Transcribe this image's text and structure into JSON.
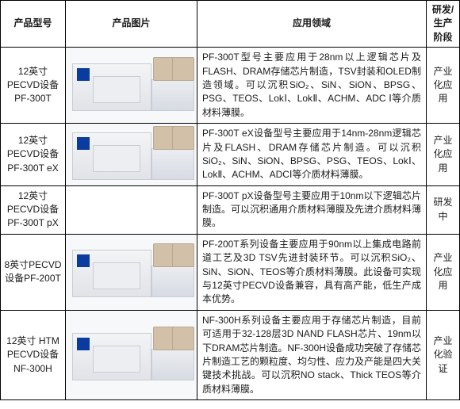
{
  "headers": {
    "model": "产品型号",
    "image": "产品图片",
    "app": "应用领域",
    "stage": "研发/生产阶段"
  },
  "rows": [
    {
      "model": "12英寸PECVD设备PF-300T",
      "app": "PF-300T型号主要应用于28nm以上逻辑芯片及FLASH、DRAM存储芯片制造，TSV封装和OLED制造领域。可以沉积SiO₂、SiN、SiON、BPSG、PSG、TEOS、LokⅠ、LokⅡ、ACHM、ADC Ⅰ等介质材料薄膜。",
      "stage": "产业化应用",
      "has_image": true
    },
    {
      "model": "12英寸PECVD设备PF-300T eX",
      "app": "PF-300T eX设备型号主要应用于14nm-28nm逻辑芯片及FLASH、DRAM存储芯片制造。可以沉积SiO₂、SiN、SiON、BPSG、PSG、TEOS、LokⅠ、LokⅡ、ACHM、ADCⅠ等介质材料薄膜。",
      "stage": "产业化应用",
      "has_image": true
    },
    {
      "model": "12英寸PECVD设备PF-300T pX",
      "app": "PF-300T pX设备型号主要应用于10nm以下逻辑芯片制造。可以沉积通用介质材料薄膜及先进介质材料薄膜。",
      "stage": "研发中",
      "has_image": false
    },
    {
      "model": "8英寸PECVD设备PF-200T",
      "app": "PF-200T系列设备主要应用于90nm以上集成电路前道工艺及3D TSV先进封装环节。可以沉积SiO₂、SiN、SiON、TEOS等介质材料薄膜。此设备可实现与12英寸PECVD设备兼容，具有高产能，低生产成本优势。",
      "stage": "产业化应用",
      "has_image": true
    },
    {
      "model": "12英寸 HTM PECVD设备NF-300H",
      "app": "NF-300H系列设备主要应用于存储芯片制造，目前可适用于32-128层3D NAND FLASH芯片、19nm以下DRAM芯片制造。NF-300H设备成功突破了存储芯片制造工艺的颗粒度、均匀性、应力及产能是四大关键技术挑战。可以沉积NO stack、Thick TEOS等介质材料薄膜。",
      "stage": "产业化验证",
      "has_image": true
    }
  ],
  "colors": {
    "border": "#000000",
    "image_bg": "#f7f8fa",
    "machine_light": "#f3f4f6",
    "machine_dark": "#d7dbe2",
    "machine_border": "#c8ccd4",
    "badge": "#0a3b9e",
    "chamber": "#d2c0a9"
  },
  "fontsize": 12
}
